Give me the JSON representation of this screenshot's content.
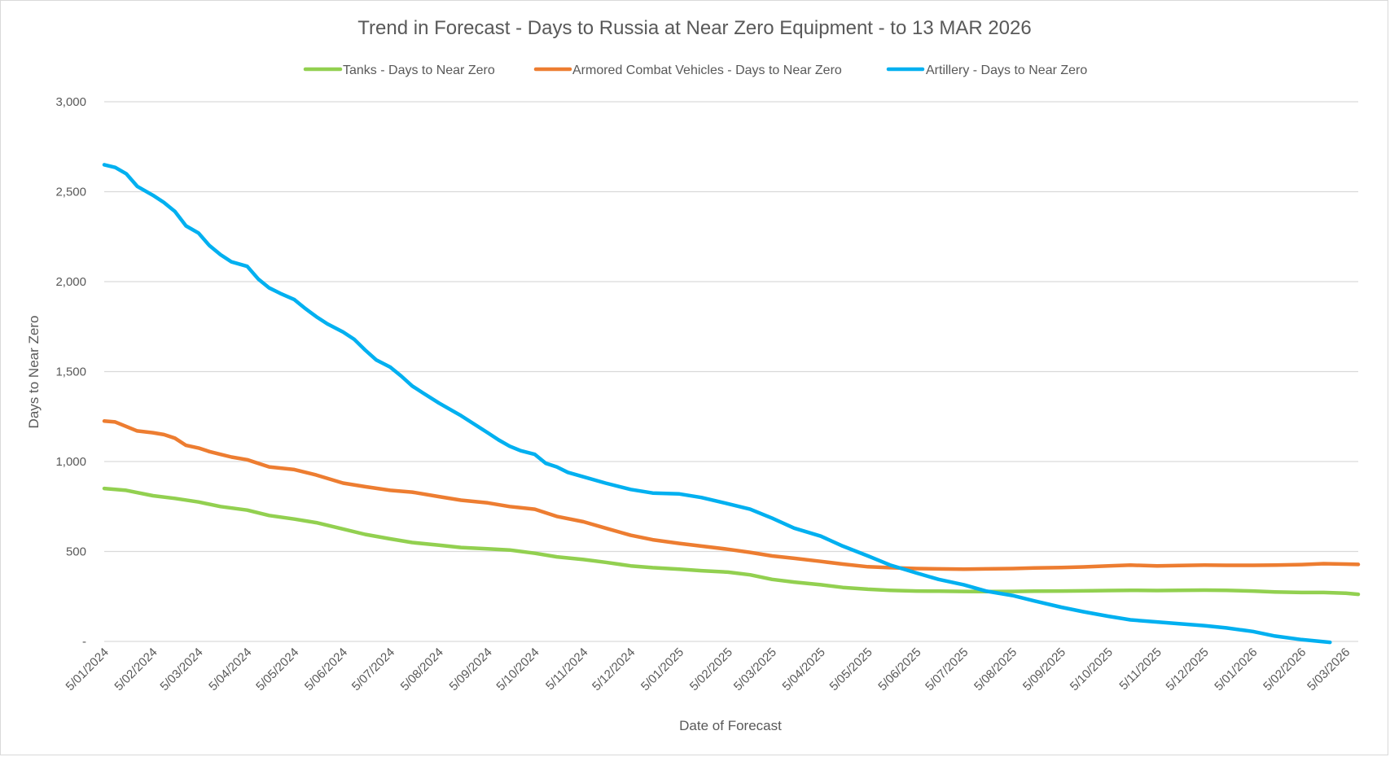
{
  "chart_data": {
    "type": "line",
    "title": "Trend in Forecast - Days to Russia at Near Zero Equipment - to 13 MAR 2026",
    "xlabel": "Date of Forecast",
    "ylabel": "Days to Near Zero",
    "x_tick_labels": [
      "5/01/2024",
      "5/02/2024",
      "5/03/2024",
      "5/04/2024",
      "5/05/2024",
      "5/06/2024",
      "5/07/2024",
      "5/08/2024",
      "5/09/2024",
      "5/10/2024",
      "5/11/2024",
      "5/12/2024",
      "5/01/2025",
      "5/02/2025",
      "5/03/2025",
      "5/04/2025",
      "5/05/2025",
      "5/06/2025",
      "5/07/2025",
      "5/08/2025",
      "5/09/2025",
      "5/10/2025",
      "5/11/2025",
      "5/12/2025",
      "5/01/2026",
      "5/02/2026",
      "5/03/2026"
    ],
    "x_range": [
      "5/01/2024",
      "13/03/2026"
    ],
    "y_ticks": [
      0,
      500,
      1000,
      1500,
      2000,
      2500,
      3000
    ],
    "y_tick_labels": [
      "-",
      "500",
      "1,000",
      "1,500",
      "2,000",
      "2,500",
      "3,000"
    ],
    "ylim": [
      0,
      3000
    ],
    "grid": true,
    "legend_position": "top",
    "series": [
      {
        "name": "Tanks - Days to Near Zero",
        "color": "#92d050",
        "points": [
          [
            "5/01/2024",
            850
          ],
          [
            "19/01/2024",
            840
          ],
          [
            "5/02/2024",
            810
          ],
          [
            "19/02/2024",
            795
          ],
          [
            "5/03/2024",
            775
          ],
          [
            "19/03/2024",
            750
          ],
          [
            "5/04/2024",
            730
          ],
          [
            "19/04/2024",
            700
          ],
          [
            "5/05/2024",
            680
          ],
          [
            "19/05/2024",
            660
          ],
          [
            "5/06/2024",
            625
          ],
          [
            "19/06/2024",
            595
          ],
          [
            "5/07/2024",
            570
          ],
          [
            "19/07/2024",
            550
          ],
          [
            "5/08/2024",
            535
          ],
          [
            "19/08/2024",
            522
          ],
          [
            "5/09/2024",
            515
          ],
          [
            "19/09/2024",
            508
          ],
          [
            "5/10/2024",
            490
          ],
          [
            "19/10/2024",
            470
          ],
          [
            "5/11/2024",
            455
          ],
          [
            "19/11/2024",
            440
          ],
          [
            "5/12/2024",
            420
          ],
          [
            "19/12/2024",
            410
          ],
          [
            "5/01/2025",
            402
          ],
          [
            "19/01/2025",
            393
          ],
          [
            "5/02/2025",
            385
          ],
          [
            "19/02/2025",
            370
          ],
          [
            "5/03/2025",
            345
          ],
          [
            "19/03/2025",
            330
          ],
          [
            "5/04/2025",
            315
          ],
          [
            "19/04/2025",
            300
          ],
          [
            "5/05/2025",
            290
          ],
          [
            "19/05/2025",
            284
          ],
          [
            "5/06/2025",
            280
          ],
          [
            "19/06/2025",
            279
          ],
          [
            "5/07/2025",
            278
          ],
          [
            "19/07/2025",
            277
          ],
          [
            "5/08/2025",
            278
          ],
          [
            "19/08/2025",
            279
          ],
          [
            "5/09/2025",
            280
          ],
          [
            "19/09/2025",
            281
          ],
          [
            "5/10/2025",
            283
          ],
          [
            "19/10/2025",
            284
          ],
          [
            "5/11/2025",
            283
          ],
          [
            "19/11/2025",
            284
          ],
          [
            "5/12/2025",
            285
          ],
          [
            "19/12/2025",
            284
          ],
          [
            "5/01/2026",
            280
          ],
          [
            "19/01/2026",
            275
          ],
          [
            "5/02/2026",
            272
          ],
          [
            "19/02/2026",
            272
          ],
          [
            "5/03/2026",
            268
          ],
          [
            "13/03/2026",
            262
          ]
        ]
      },
      {
        "name": "Armored Combat Vehicles - Days to Near Zero",
        "color": "#ed7d31",
        "points": [
          [
            "5/01/2024",
            1225
          ],
          [
            "12/01/2024",
            1220
          ],
          [
            "19/01/2024",
            1195
          ],
          [
            "26/01/2024",
            1170
          ],
          [
            "5/02/2024",
            1160
          ],
          [
            "12/02/2024",
            1150
          ],
          [
            "19/02/2024",
            1130
          ],
          [
            "26/02/2024",
            1090
          ],
          [
            "5/03/2024",
            1075
          ],
          [
            "12/03/2024",
            1055
          ],
          [
            "19/03/2024",
            1040
          ],
          [
            "26/03/2024",
            1025
          ],
          [
            "5/04/2024",
            1010
          ],
          [
            "19/04/2024",
            970
          ],
          [
            "5/05/2024",
            955
          ],
          [
            "19/05/2024",
            925
          ],
          [
            "5/06/2024",
            880
          ],
          [
            "19/06/2024",
            860
          ],
          [
            "5/07/2024",
            840
          ],
          [
            "19/07/2024",
            830
          ],
          [
            "5/08/2024",
            805
          ],
          [
            "19/08/2024",
            785
          ],
          [
            "5/09/2024",
            770
          ],
          [
            "19/09/2024",
            750
          ],
          [
            "5/10/2024",
            735
          ],
          [
            "19/10/2024",
            695
          ],
          [
            "5/11/2024",
            665
          ],
          [
            "19/11/2024",
            630
          ],
          [
            "5/12/2024",
            590
          ],
          [
            "19/12/2024",
            565
          ],
          [
            "5/01/2025",
            545
          ],
          [
            "19/01/2025",
            530
          ],
          [
            "5/02/2025",
            512
          ],
          [
            "19/02/2025",
            495
          ],
          [
            "5/03/2025",
            475
          ],
          [
            "19/03/2025",
            462
          ],
          [
            "5/04/2025",
            445
          ],
          [
            "19/04/2025",
            430
          ],
          [
            "5/05/2025",
            415
          ],
          [
            "19/05/2025",
            410
          ],
          [
            "5/06/2025",
            405
          ],
          [
            "19/06/2025",
            403
          ],
          [
            "5/07/2025",
            402
          ],
          [
            "19/07/2025",
            403
          ],
          [
            "5/08/2025",
            405
          ],
          [
            "19/08/2025",
            408
          ],
          [
            "5/09/2025",
            411
          ],
          [
            "19/09/2025",
            414
          ],
          [
            "5/10/2025",
            420
          ],
          [
            "19/10/2025",
            424
          ],
          [
            "5/11/2025",
            420
          ],
          [
            "19/11/2025",
            422
          ],
          [
            "5/12/2025",
            424
          ],
          [
            "19/12/2025",
            423
          ],
          [
            "5/01/2026",
            423
          ],
          [
            "19/01/2026",
            424
          ],
          [
            "5/02/2026",
            427
          ],
          [
            "19/02/2026",
            432
          ],
          [
            "5/03/2026",
            430
          ],
          [
            "13/03/2026",
            428
          ]
        ]
      },
      {
        "name": "Artillery - Days to Near Zero",
        "color": "#00b0f0",
        "points": [
          [
            "5/01/2024",
            2650
          ],
          [
            "12/01/2024",
            2635
          ],
          [
            "19/01/2024",
            2600
          ],
          [
            "26/01/2024",
            2530
          ],
          [
            "5/02/2024",
            2480
          ],
          [
            "12/02/2024",
            2440
          ],
          [
            "19/02/2024",
            2390
          ],
          [
            "26/02/2024",
            2310
          ],
          [
            "5/03/2024",
            2270
          ],
          [
            "12/03/2024",
            2200
          ],
          [
            "19/03/2024",
            2150
          ],
          [
            "26/03/2024",
            2110
          ],
          [
            "5/04/2024",
            2085
          ],
          [
            "12/04/2024",
            2015
          ],
          [
            "19/04/2024",
            1965
          ],
          [
            "26/04/2024",
            1935
          ],
          [
            "5/05/2024",
            1900
          ],
          [
            "12/05/2024",
            1850
          ],
          [
            "19/05/2024",
            1805
          ],
          [
            "26/05/2024",
            1765
          ],
          [
            "5/06/2024",
            1720
          ],
          [
            "12/06/2024",
            1680
          ],
          [
            "19/06/2024",
            1620
          ],
          [
            "26/06/2024",
            1565
          ],
          [
            "5/07/2024",
            1525
          ],
          [
            "12/07/2024",
            1475
          ],
          [
            "19/07/2024",
            1420
          ],
          [
            "26/07/2024",
            1380
          ],
          [
            "5/08/2024",
            1325
          ],
          [
            "19/08/2024",
            1255
          ],
          [
            "5/09/2024",
            1160
          ],
          [
            "12/09/2024",
            1120
          ],
          [
            "19/09/2024",
            1085
          ],
          [
            "26/09/2024",
            1060
          ],
          [
            "5/10/2024",
            1040
          ],
          [
            "12/10/2024",
            990
          ],
          [
            "19/10/2024",
            970
          ],
          [
            "26/10/2024",
            940
          ],
          [
            "5/11/2024",
            915
          ],
          [
            "19/11/2024",
            880
          ],
          [
            "5/12/2024",
            845
          ],
          [
            "19/12/2024",
            825
          ],
          [
            "5/01/2025",
            820
          ],
          [
            "19/01/2025",
            800
          ],
          [
            "5/02/2025",
            765
          ],
          [
            "19/02/2025",
            735
          ],
          [
            "5/03/2025",
            685
          ],
          [
            "19/03/2025",
            630
          ],
          [
            "5/04/2025",
            585
          ],
          [
            "19/04/2025",
            530
          ],
          [
            "5/05/2025",
            475
          ],
          [
            "19/05/2025",
            425
          ],
          [
            "5/06/2025",
            380
          ],
          [
            "19/06/2025",
            345
          ],
          [
            "5/07/2025",
            315
          ],
          [
            "19/07/2025",
            280
          ],
          [
            "5/08/2025",
            255
          ],
          [
            "19/08/2025",
            225
          ],
          [
            "5/09/2025",
            190
          ],
          [
            "19/09/2025",
            165
          ],
          [
            "5/10/2025",
            140
          ],
          [
            "19/10/2025",
            120
          ],
          [
            "5/11/2025",
            108
          ],
          [
            "19/11/2025",
            98
          ],
          [
            "5/12/2025",
            88
          ],
          [
            "19/12/2025",
            75
          ],
          [
            "5/01/2026",
            55
          ],
          [
            "19/01/2026",
            30
          ],
          [
            "5/02/2026",
            10
          ],
          [
            "19/02/2026",
            -2
          ],
          [
            "23/02/2026",
            -5
          ]
        ]
      }
    ]
  }
}
